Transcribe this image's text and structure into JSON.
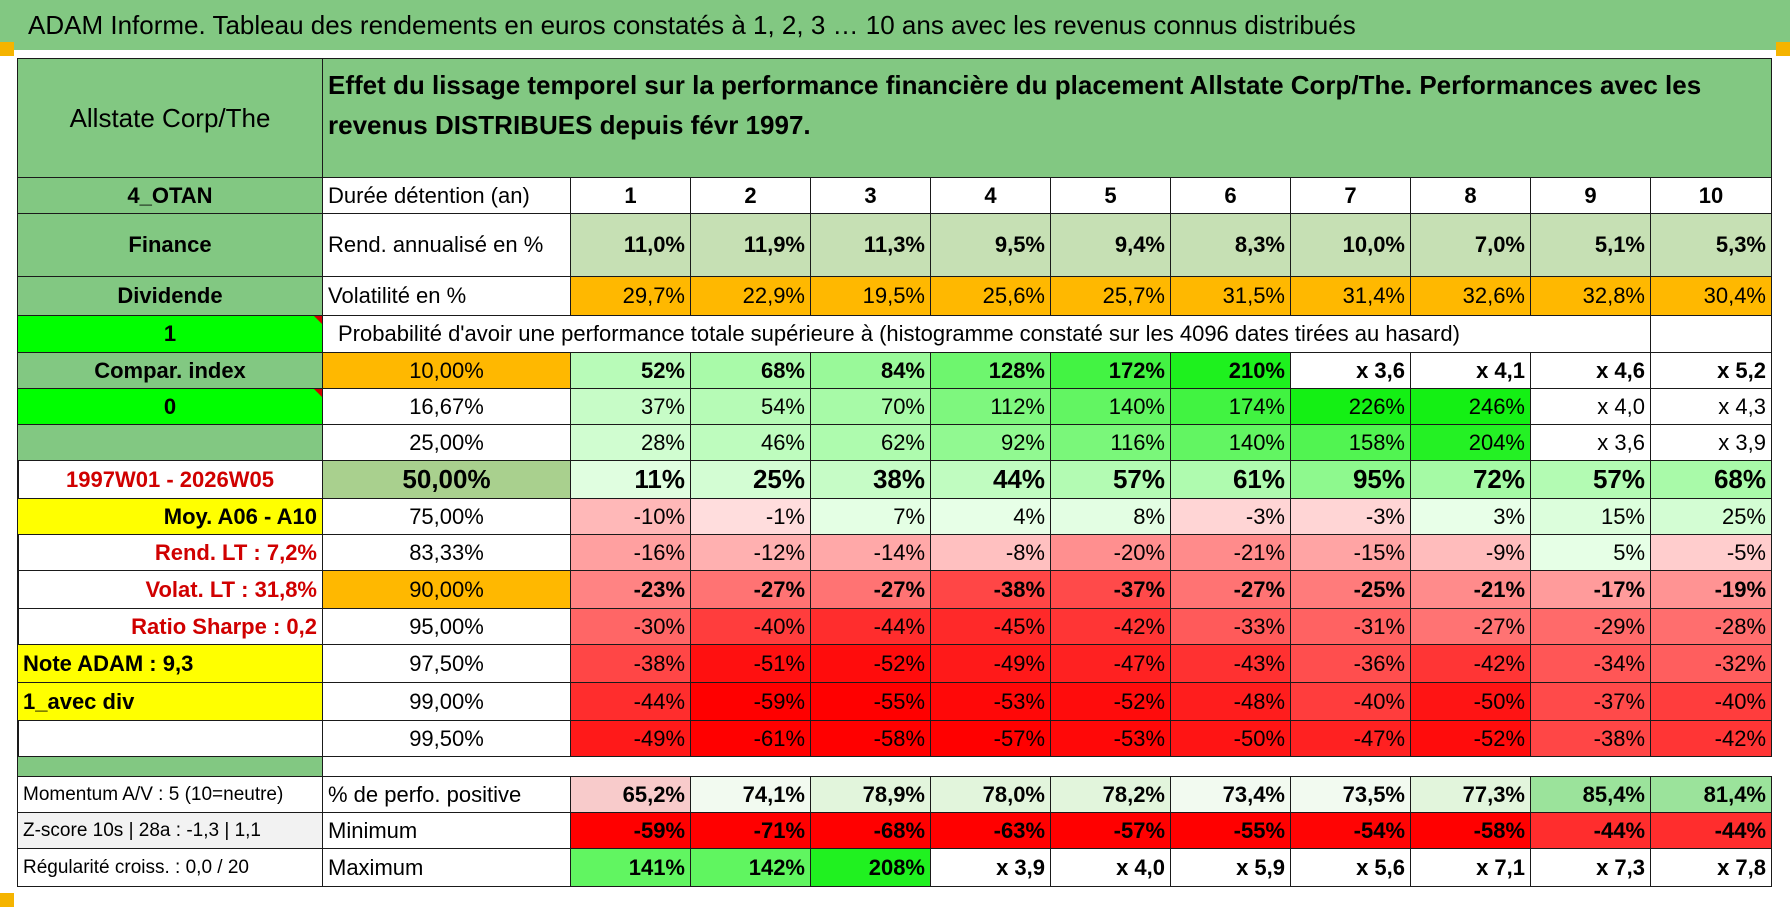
{
  "title": "ADAM Informe. Tableau des rendements en euros constatés à 1, 2, 3 … 10 ans avec les revenus connus distribués",
  "colors": {
    "header_green": "#82c882",
    "orange": "#ffb800",
    "yellow": "#ffff00",
    "bright_green": "#00ff00",
    "red_text": "#d00000"
  },
  "header": {
    "name": "Allstate Corp/The",
    "description": "Effet du lissage temporel sur la performance financière du placement Allstate Corp/The. Performances avec les revenus DISTRIBUES depuis févr 1997."
  },
  "durations": [
    "1",
    "2",
    "3",
    "4",
    "5",
    "6",
    "7",
    "8",
    "9",
    "10"
  ],
  "rows": {
    "duree": {
      "left": "4_OTAN",
      "label": "Durée détention (an)"
    },
    "rend": {
      "left": "Finance",
      "label": "Rend. annualisé en %",
      "values": [
        "11,0%",
        "11,9%",
        "11,3%",
        "9,5%",
        "9,4%",
        "8,3%",
        "10,0%",
        "7,0%",
        "5,1%",
        "5,3%"
      ]
    },
    "vol": {
      "left": "Dividende",
      "label": "Volatilité en %",
      "values": [
        "29,7%",
        "22,9%",
        "19,5%",
        "25,6%",
        "25,7%",
        "31,5%",
        "31,4%",
        "32,6%",
        "32,8%",
        "30,4%"
      ]
    },
    "proba": {
      "left": "1",
      "label": "Probabilité d'avoir une performance totale supérieure à (histogramme constaté sur les 4096 dates tirées au hasard)"
    }
  },
  "side_labels": [
    "Compar. index",
    "0",
    "",
    "1997W01 - 2026W05",
    "Moy. A06 - A10",
    "Rend. LT :   7,2%",
    "Volat. LT :   31,8%",
    "Ratio Sharpe :    0,2",
    "Note ADAM : 9,3",
    "1_avec div",
    ""
  ],
  "percentiles": [
    {
      "p": "10,00%",
      "values": [
        "52%",
        "68%",
        "84%",
        "128%",
        "172%",
        "210%",
        "x 3,6",
        "x 4,1",
        "x 4,6",
        "x 5,2"
      ]
    },
    {
      "p": "16,67%",
      "values": [
        "37%",
        "54%",
        "70%",
        "112%",
        "140%",
        "174%",
        "226%",
        "246%",
        "x 4,0",
        "x 4,3"
      ]
    },
    {
      "p": "25,00%",
      "values": [
        "28%",
        "46%",
        "62%",
        "92%",
        "116%",
        "140%",
        "158%",
        "204%",
        "x 3,6",
        "x 3,9"
      ]
    },
    {
      "p": "50,00%",
      "values": [
        "11%",
        "25%",
        "38%",
        "44%",
        "57%",
        "61%",
        "95%",
        "72%",
        "57%",
        "68%"
      ]
    },
    {
      "p": "75,00%",
      "values": [
        "-10%",
        "-1%",
        "7%",
        "4%",
        "8%",
        "-3%",
        "-3%",
        "3%",
        "15%",
        "25%"
      ]
    },
    {
      "p": "83,33%",
      "values": [
        "-16%",
        "-12%",
        "-14%",
        "-8%",
        "-20%",
        "-21%",
        "-15%",
        "-9%",
        "5%",
        "-5%"
      ]
    },
    {
      "p": "90,00%",
      "values": [
        "-23%",
        "-27%",
        "-27%",
        "-38%",
        "-37%",
        "-27%",
        "-25%",
        "-21%",
        "-17%",
        "-19%"
      ]
    },
    {
      "p": "95,00%",
      "values": [
        "-30%",
        "-40%",
        "-44%",
        "-45%",
        "-42%",
        "-33%",
        "-31%",
        "-27%",
        "-29%",
        "-28%"
      ]
    },
    {
      "p": "97,50%",
      "values": [
        "-38%",
        "-51%",
        "-52%",
        "-49%",
        "-47%",
        "-43%",
        "-36%",
        "-42%",
        "-34%",
        "-32%"
      ]
    },
    {
      "p": "99,00%",
      "values": [
        "-44%",
        "-59%",
        "-55%",
        "-53%",
        "-52%",
        "-48%",
        "-40%",
        "-50%",
        "-37%",
        "-40%"
      ]
    },
    {
      "p": "99,50%",
      "values": [
        "-49%",
        "-61%",
        "-58%",
        "-57%",
        "-53%",
        "-50%",
        "-47%",
        "-52%",
        "-38%",
        "-42%"
      ]
    }
  ],
  "bottom": [
    {
      "left": "Momentum A/V : 5 (10=neutre)",
      "label": "% de perfo. positive",
      "values": [
        "65,2%",
        "74,1%",
        "78,9%",
        "78,0%",
        "78,2%",
        "73,4%",
        "73,5%",
        "77,3%",
        "85,4%",
        "81,4%"
      ]
    },
    {
      "left": "Z-score 10s | 28a : -1,3 | 1,1",
      "label": "Minimum",
      "values": [
        "-59%",
        "-71%",
        "-68%",
        "-63%",
        "-57%",
        "-55%",
        "-54%",
        "-58%",
        "-44%",
        "-44%"
      ]
    },
    {
      "left": "Régularité croiss. : 0,0 / 20",
      "label": "Maximum",
      "values": [
        "141%",
        "142%",
        "208%",
        "x 3,9",
        "x 4,0",
        "x 5,9",
        "x 5,6",
        "x 7,1",
        "x 7,3",
        "x 7,8"
      ]
    }
  ]
}
